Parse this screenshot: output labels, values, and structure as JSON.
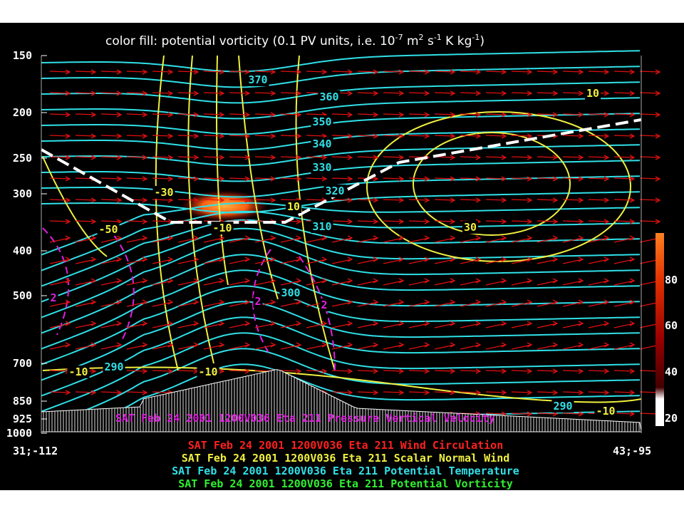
{
  "title": {
    "parts": [
      "color fill: potential vorticity (0.1 PV units, i.e. 10",
      "-7",
      " m",
      "2",
      " s",
      "-1",
      " K kg",
      "-1",
      ")"
    ]
  },
  "y_axis": {
    "labels": [
      "150",
      "200",
      "250",
      "300",
      "400",
      "500",
      "700",
      "850",
      "925",
      "1000"
    ]
  },
  "x_axis": {
    "left": "31;-112",
    "right": "43;-95"
  },
  "contour_labels": [
    "370",
    "360",
    "350",
    "340",
    "330",
    "320",
    "310",
    "300",
    "290",
    "290",
    "10",
    "-30",
    "10",
    "-10",
    "-50",
    "30",
    "-10",
    "-10",
    "-10",
    "2",
    "2",
    "2"
  ],
  "colorbar": {
    "labels": [
      "80",
      "60",
      "40",
      "20"
    ]
  },
  "legend_lines": [
    "SAT Feb 24 2001 1200V036 Eta 211 Pressure Vertical Velocity",
    "SAT Feb 24 2001 1200V036 Eta 211 Wind Circulation",
    "SAT Feb 24 2001 1200V036 Eta 211 Scalar Normal Wind",
    "SAT Feb 24 2001 1200V036 Eta 211 Potential Temperature",
    "SAT Feb 24 2001 1200V036 Eta 211 Potential Vorticity"
  ]
}
